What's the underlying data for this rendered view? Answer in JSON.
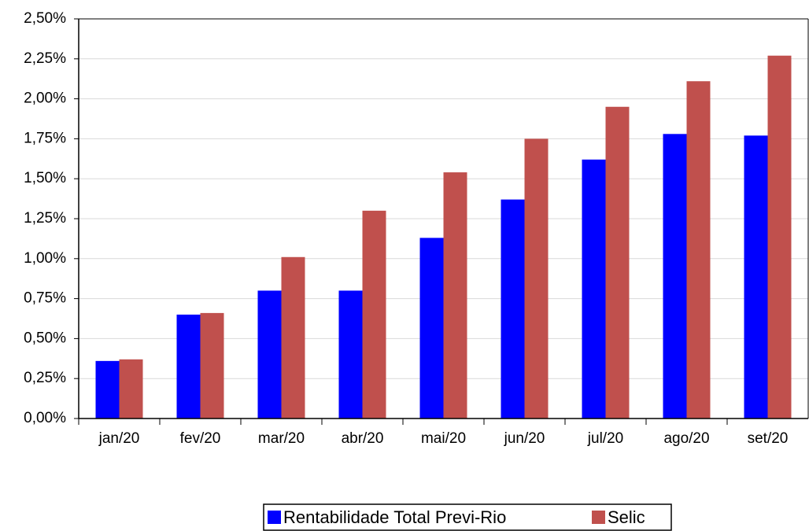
{
  "chart_data": {
    "type": "bar",
    "categories": [
      "jan/20",
      "fev/20",
      "mar/20",
      "abr/20",
      "mai/20",
      "jun/20",
      "jul/20",
      "ago/20",
      "set/20"
    ],
    "series": [
      {
        "name": "Rentabilidade Total Previ-Rio",
        "color": "#0000ff",
        "values": [
          0.36,
          0.65,
          0.8,
          0.8,
          1.13,
          1.37,
          1.62,
          1.78,
          1.77
        ]
      },
      {
        "name": "Selic",
        "color": "#c0504d",
        "values": [
          0.37,
          0.66,
          1.01,
          1.3,
          1.54,
          1.75,
          1.95,
          2.11,
          2.27
        ]
      }
    ],
    "ylim": [
      0,
      2.5
    ],
    "yticks": [
      {
        "value": 0,
        "label": "0,00%"
      },
      {
        "value": 0.25,
        "label": "0,25%"
      },
      {
        "value": 0.5,
        "label": "0,50%"
      },
      {
        "value": 0.75,
        "label": "0,75%"
      },
      {
        "value": 1,
        "label": "1,00%"
      },
      {
        "value": 1.25,
        "label": "1,25%"
      },
      {
        "value": 1.5,
        "label": "1,50%"
      },
      {
        "value": 1.75,
        "label": "1,75%"
      },
      {
        "value": 2,
        "label": "2,00%"
      },
      {
        "value": 2.25,
        "label": "2,25%"
      },
      {
        "value": 2.5,
        "label": "2,50%"
      }
    ],
    "grid": true,
    "legend": "bottom"
  }
}
